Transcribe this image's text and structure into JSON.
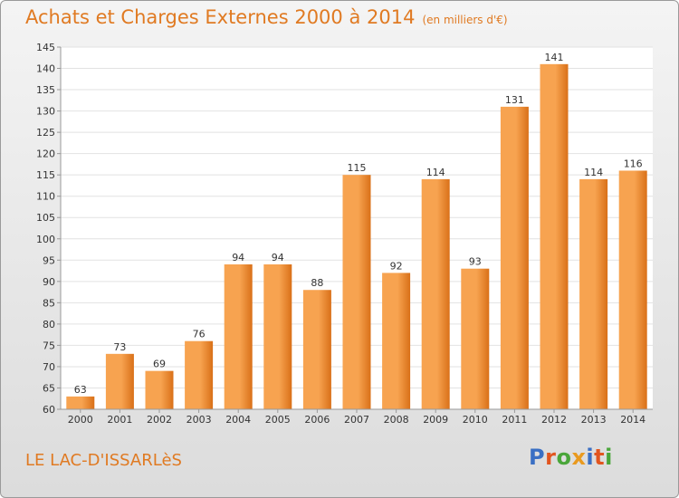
{
  "chart_title": "Achats et Charges Externes 2000 à 2014",
  "chart_unit": "(en milliers d'€)",
  "commune": "LE LAC-D'ISSARLèS",
  "brand": [
    "P",
    "r",
    "o",
    "x",
    "i",
    "t",
    "i"
  ],
  "colors": {
    "accent": "#e07a22",
    "bar_light": "#f7a350",
    "bar_dark": "#d97018",
    "brand": [
      "#3a6fc4",
      "#e2551f",
      "#4aa63a",
      "#e99a1f",
      "#3a6fc4",
      "#e2551f",
      "#4aa63a"
    ]
  },
  "chart_data": {
    "type": "bar",
    "title": "Achats et Charges Externes 2000 à 2014",
    "ylabel": "",
    "xlabel": "",
    "categories": [
      "2000",
      "2001",
      "2002",
      "2003",
      "2004",
      "2005",
      "2006",
      "2007",
      "2008",
      "2009",
      "2010",
      "2011",
      "2012",
      "2013",
      "2014"
    ],
    "values": [
      63,
      73,
      69,
      76,
      94,
      94,
      88,
      115,
      92,
      114,
      93,
      131,
      141,
      114,
      116
    ],
    "ylim": [
      60,
      145
    ],
    "yticks": [
      60,
      65,
      70,
      75,
      80,
      85,
      90,
      95,
      100,
      105,
      110,
      115,
      120,
      125,
      130,
      135,
      140,
      145
    ],
    "grid": true,
    "legend": "none"
  }
}
